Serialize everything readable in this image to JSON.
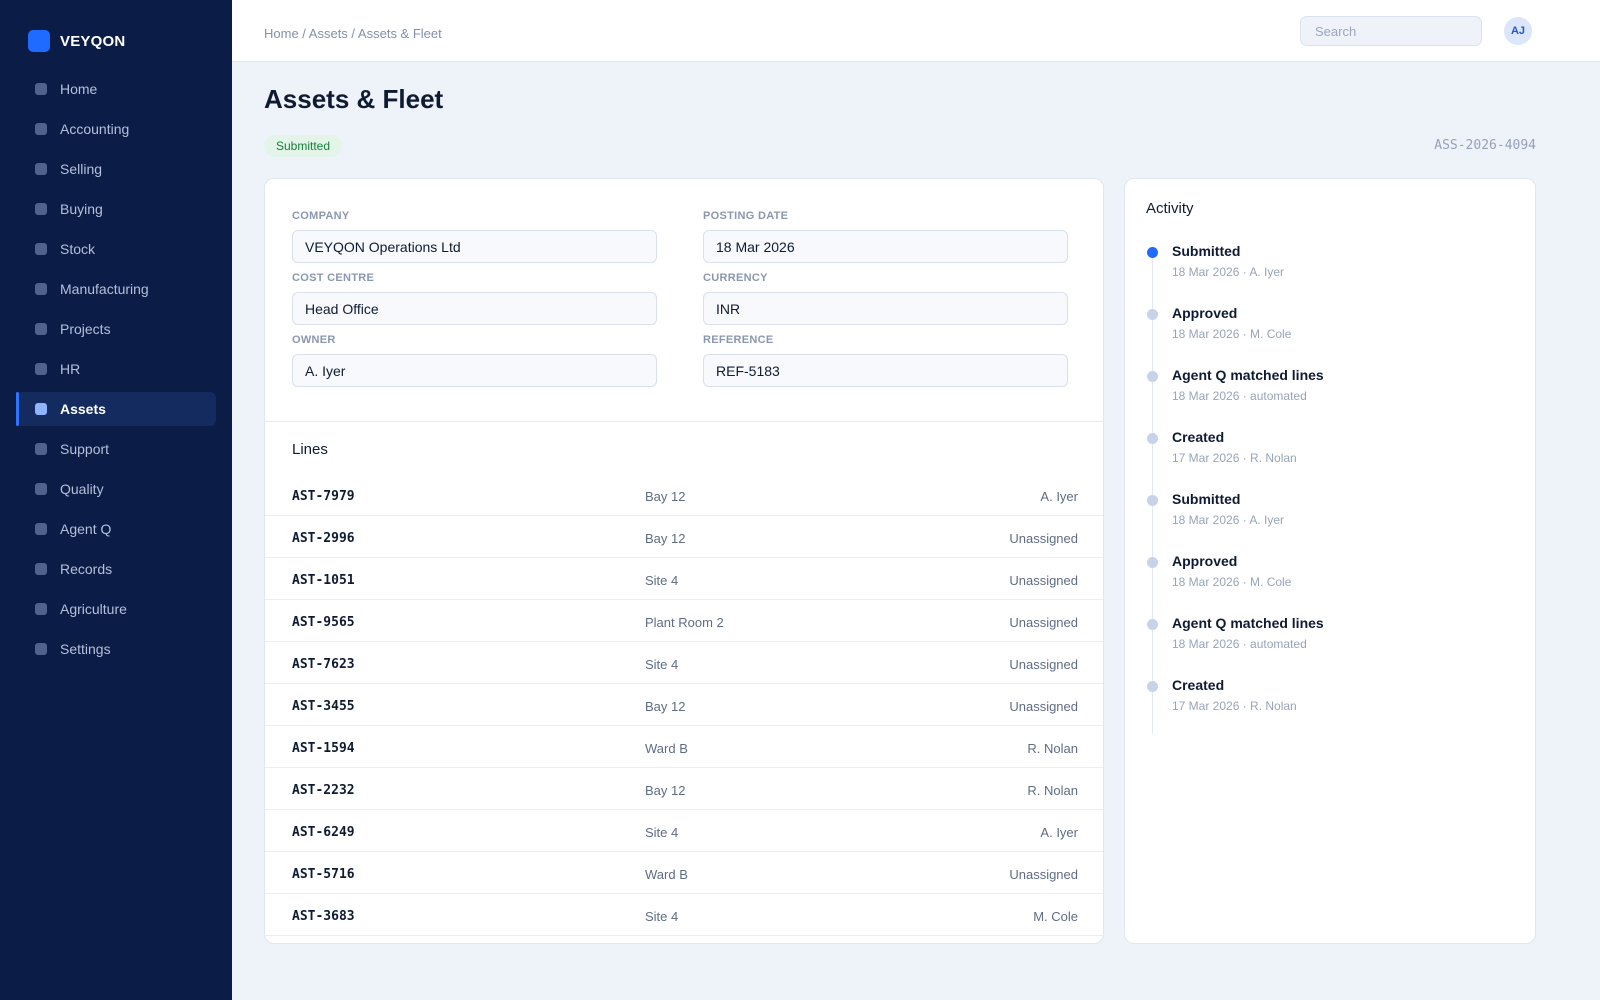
{
  "app": {
    "brand": "VEYQON"
  },
  "sidebar": {
    "items": [
      {
        "label": "Home",
        "active": false
      },
      {
        "label": "Accounting",
        "active": false
      },
      {
        "label": "Selling",
        "active": false
      },
      {
        "label": "Buying",
        "active": false
      },
      {
        "label": "Stock",
        "active": false
      },
      {
        "label": "Manufacturing",
        "active": false
      },
      {
        "label": "Projects",
        "active": false
      },
      {
        "label": "HR",
        "active": false
      },
      {
        "label": "Assets",
        "active": true
      },
      {
        "label": "Support",
        "active": false
      },
      {
        "label": "Quality",
        "active": false
      },
      {
        "label": "Agent Q",
        "active": false
      },
      {
        "label": "Records",
        "active": false
      },
      {
        "label": "Agriculture",
        "active": false
      },
      {
        "label": "Settings",
        "active": false
      }
    ]
  },
  "header": {
    "breadcrumb": "Home / Assets / Assets & Fleet",
    "search_placeholder": "Search",
    "search_value": "",
    "avatar_initials": "AJ"
  },
  "page": {
    "title": "Assets & Fleet",
    "status": "Submitted",
    "doc_id": "ASS-2026-4094"
  },
  "form": {
    "company": {
      "label": "COMPANY",
      "value": "VEYQON Operations Ltd"
    },
    "posting_date": {
      "label": "POSTING DATE",
      "value": "18 Mar 2026"
    },
    "cost_centre": {
      "label": "COST CENTRE",
      "value": "Head Office"
    },
    "currency": {
      "label": "CURRENCY",
      "value": "INR"
    },
    "owner": {
      "label": "OWNER",
      "value": "A. Iyer"
    },
    "reference": {
      "label": "REFERENCE",
      "value": "REF-5183"
    }
  },
  "lines": {
    "title": "Lines",
    "rows": [
      {
        "id": "AST-7979",
        "location": "Bay 12",
        "owner": "A. Iyer"
      },
      {
        "id": "AST-2996",
        "location": "Bay 12",
        "owner": "Unassigned"
      },
      {
        "id": "AST-1051",
        "location": "Site 4",
        "owner": "Unassigned"
      },
      {
        "id": "AST-9565",
        "location": "Plant Room 2",
        "owner": "Unassigned"
      },
      {
        "id": "AST-7623",
        "location": "Site 4",
        "owner": "Unassigned"
      },
      {
        "id": "AST-3455",
        "location": "Bay 12",
        "owner": "Unassigned"
      },
      {
        "id": "AST-1594",
        "location": "Ward B",
        "owner": "R. Nolan"
      },
      {
        "id": "AST-2232",
        "location": "Bay 12",
        "owner": "R. Nolan"
      },
      {
        "id": "AST-6249",
        "location": "Site 4",
        "owner": "A. Iyer"
      },
      {
        "id": "AST-5716",
        "location": "Ward B",
        "owner": "Unassigned"
      },
      {
        "id": "AST-3683",
        "location": "Site 4",
        "owner": "M. Cole"
      }
    ]
  },
  "activity": {
    "title": "Activity",
    "items": [
      {
        "title": "Submitted",
        "meta": "18 Mar 2026 · A. Iyer"
      },
      {
        "title": "Approved",
        "meta": "18 Mar 2026 · M. Cole"
      },
      {
        "title": "Agent Q matched lines",
        "meta": "18 Mar 2026 · automated"
      },
      {
        "title": "Created",
        "meta": "17 Mar 2026 · R. Nolan"
      },
      {
        "title": "Submitted",
        "meta": "18 Mar 2026 · A. Iyer"
      },
      {
        "title": "Approved",
        "meta": "18 Mar 2026 · M. Cole"
      },
      {
        "title": "Agent Q matched lines",
        "meta": "18 Mar 2026 · automated"
      },
      {
        "title": "Created",
        "meta": "17 Mar 2026 · R. Nolan"
      }
    ]
  }
}
